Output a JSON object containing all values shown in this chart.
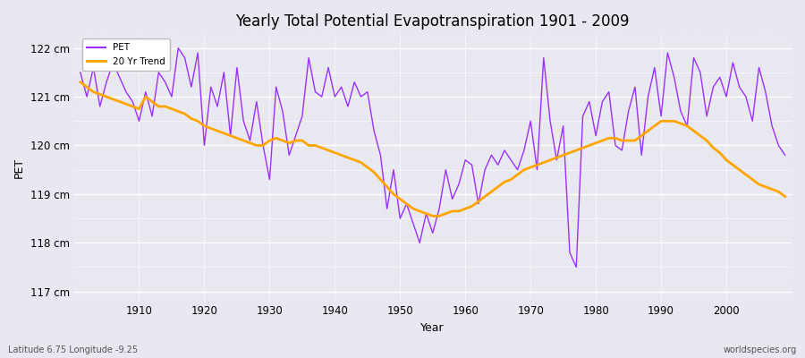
{
  "title": "Yearly Total Potential Evapotranspiration 1901 - 2009",
  "xlabel": "Year",
  "ylabel": "PET",
  "subtitle_left": "Latitude 6.75 Longitude -9.25",
  "subtitle_right": "worldspecies.org",
  "pet_color": "#9B30FF",
  "trend_color": "#FFA500",
  "background_color": "#E8E8F0",
  "years": [
    1901,
    1902,
    1903,
    1904,
    1905,
    1906,
    1907,
    1908,
    1909,
    1910,
    1911,
    1912,
    1913,
    1914,
    1915,
    1916,
    1917,
    1918,
    1919,
    1920,
    1921,
    1922,
    1923,
    1924,
    1925,
    1926,
    1927,
    1928,
    1929,
    1930,
    1931,
    1932,
    1933,
    1934,
    1935,
    1936,
    1937,
    1938,
    1939,
    1940,
    1941,
    1942,
    1943,
    1944,
    1945,
    1946,
    1947,
    1948,
    1949,
    1950,
    1951,
    1952,
    1953,
    1954,
    1955,
    1956,
    1957,
    1958,
    1959,
    1960,
    1961,
    1962,
    1963,
    1964,
    1965,
    1966,
    1967,
    1968,
    1969,
    1970,
    1971,
    1972,
    1973,
    1974,
    1975,
    1976,
    1977,
    1978,
    1979,
    1980,
    1981,
    1982,
    1983,
    1984,
    1985,
    1986,
    1987,
    1988,
    1989,
    1990,
    1991,
    1992,
    1993,
    1994,
    1995,
    1996,
    1997,
    1998,
    1999,
    2000,
    2001,
    2002,
    2003,
    2004,
    2005,
    2006,
    2007,
    2008,
    2009
  ],
  "pet_values": [
    121.5,
    121.0,
    121.6,
    120.8,
    121.3,
    121.7,
    121.4,
    121.1,
    120.9,
    120.5,
    121.1,
    120.6,
    121.5,
    121.3,
    121.0,
    122.0,
    121.8,
    121.2,
    121.9,
    120.0,
    121.2,
    120.8,
    121.5,
    120.2,
    121.6,
    120.5,
    120.1,
    120.9,
    120.0,
    119.3,
    121.2,
    120.7,
    119.8,
    120.2,
    120.6,
    121.8,
    121.1,
    121.0,
    121.6,
    121.0,
    121.2,
    120.8,
    121.3,
    121.0,
    121.1,
    120.3,
    119.8,
    118.7,
    119.5,
    118.5,
    118.8,
    118.4,
    118.0,
    118.6,
    118.2,
    118.7,
    119.5,
    118.9,
    119.2,
    119.7,
    119.6,
    118.8,
    119.5,
    119.8,
    119.6,
    119.9,
    119.7,
    119.5,
    119.9,
    120.5,
    119.5,
    121.8,
    120.5,
    119.7,
    120.4,
    117.8,
    117.5,
    120.6,
    120.9,
    120.2,
    120.9,
    121.1,
    120.0,
    119.9,
    120.7,
    121.2,
    119.8,
    121.0,
    121.6,
    120.6,
    121.9,
    121.4,
    120.7,
    120.4,
    121.8,
    121.5,
    120.6,
    121.2,
    121.4,
    121.0,
    121.7,
    121.2,
    121.0,
    120.5,
    121.6,
    121.1,
    120.4,
    120.0,
    119.8
  ],
  "trend_values": [
    121.3,
    121.2,
    121.1,
    121.05,
    121.0,
    120.95,
    120.9,
    120.85,
    120.8,
    120.75,
    121.0,
    120.9,
    120.8,
    120.8,
    120.75,
    120.7,
    120.65,
    120.55,
    120.5,
    120.4,
    120.35,
    120.3,
    120.25,
    120.2,
    120.15,
    120.1,
    120.05,
    120.0,
    120.0,
    120.1,
    120.15,
    120.1,
    120.05,
    120.1,
    120.1,
    120.0,
    120.0,
    119.95,
    119.9,
    119.85,
    119.8,
    119.75,
    119.7,
    119.65,
    119.55,
    119.45,
    119.3,
    119.15,
    119.0,
    118.9,
    118.8,
    118.7,
    118.65,
    118.6,
    118.55,
    118.55,
    118.6,
    118.65,
    118.65,
    118.7,
    118.75,
    118.85,
    118.95,
    119.05,
    119.15,
    119.25,
    119.3,
    119.4,
    119.5,
    119.55,
    119.6,
    119.65,
    119.7,
    119.75,
    119.8,
    119.85,
    119.9,
    119.95,
    120.0,
    120.05,
    120.1,
    120.15,
    120.15,
    120.1,
    120.1,
    120.1,
    120.2,
    120.3,
    120.4,
    120.5,
    120.5,
    120.5,
    120.45,
    120.4,
    120.3,
    120.2,
    120.1,
    119.95,
    119.85,
    119.7,
    119.6,
    119.5,
    119.4,
    119.3,
    119.2,
    119.15,
    119.1,
    119.05,
    118.95
  ],
  "ylim": [
    116.8,
    122.3
  ],
  "yticks": [
    117,
    118,
    119,
    120,
    121,
    122
  ],
  "xlim": [
    1900,
    2010
  ]
}
